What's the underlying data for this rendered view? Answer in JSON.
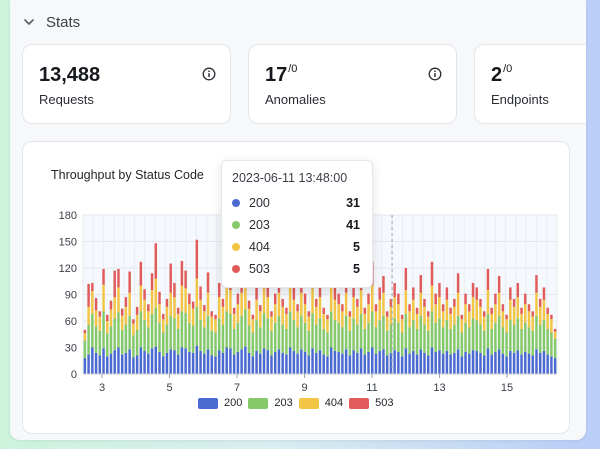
{
  "section": {
    "title": "Stats"
  },
  "cards": [
    {
      "value": "13,488",
      "sup": "",
      "label": "Requests",
      "info": true
    },
    {
      "value": "17",
      "sup": "/0",
      "label": "Anomalies",
      "info": true
    },
    {
      "value": "2",
      "sup": "/0",
      "label": "Endpoints",
      "info": false
    }
  ],
  "chart": {
    "title": "Throughput by Status Code"
  },
  "tooltip": {
    "time": "2023-06-11 13:48:00",
    "rows": [
      {
        "code": "200",
        "value": "31",
        "color": "#4a6ad1"
      },
      {
        "code": "203",
        "value": "41",
        "color": "#86c968"
      },
      {
        "code": "404",
        "value": "5",
        "color": "#f3c544"
      },
      {
        "code": "503",
        "value": "5",
        "color": "#e15b5b"
      }
    ]
  },
  "legend": [
    {
      "label": "200",
      "color": "#4a6ad1"
    },
    {
      "label": "203",
      "color": "#86c968"
    },
    {
      "label": "404",
      "color": "#f3c544"
    },
    {
      "label": "503",
      "color": "#e15b5b"
    }
  ],
  "chart_data": {
    "type": "bar",
    "stacked": true,
    "title": "Throughput by Status Code",
    "ylim": [
      0,
      180
    ],
    "yticks": [
      0,
      30,
      60,
      90,
      120,
      150,
      180
    ],
    "xticks": [
      "3",
      "5",
      "7",
      "9",
      "11",
      "13",
      "15"
    ],
    "grid": true,
    "legend_position": "bottom",
    "series": [
      {
        "name": "200",
        "color": "#4a6ad1",
        "values": [
          18,
          22,
          30,
          24,
          21,
          29,
          20,
          23,
          27,
          30,
          22,
          24,
          28,
          19,
          21,
          30,
          26,
          23,
          29,
          31,
          25,
          20,
          24,
          28,
          27,
          22,
          30,
          29,
          25,
          24,
          32,
          26,
          23,
          28,
          21,
          20,
          27,
          24,
          30,
          29,
          22,
          25,
          28,
          31,
          24,
          20,
          26,
          23,
          29,
          27,
          21,
          25,
          28,
          24,
          22,
          30,
          26,
          23,
          28,
          25,
          21,
          29,
          24,
          27,
          22,
          20,
          30,
          26,
          25,
          23,
          28,
          21,
          27,
          24,
          29,
          22,
          25,
          30,
          23,
          26,
          28,
          21,
          24,
          27,
          25,
          20,
          29,
          23,
          26,
          22,
          28,
          24,
          21,
          30,
          25,
          27,
          23,
          26,
          22,
          24,
          28,
          20,
          25,
          23,
          27,
          26,
          24,
          21,
          29,
          22,
          25,
          28,
          23,
          20,
          26,
          24,
          27,
          22,
          25,
          23,
          21,
          28,
          24,
          26,
          22,
          20,
          18
        ]
      },
      {
        "name": "203",
        "color": "#86c968",
        "values": [
          20,
          34,
          38,
          30,
          28,
          42,
          26,
          31,
          36,
          40,
          28,
          32,
          38,
          25,
          29,
          41,
          35,
          30,
          39,
          44,
          33,
          27,
          32,
          38,
          36,
          29,
          41,
          40,
          33,
          31,
          44,
          35,
          30,
          38,
          28,
          27,
          36,
          32,
          41,
          39,
          29,
          33,
          38,
          42,
          31,
          27,
          35,
          30,
          40,
          36,
          28,
          33,
          38,
          32,
          29,
          41,
          35,
          30,
          38,
          33,
          28,
          40,
          32,
          36,
          29,
          27,
          41,
          35,
          33,
          30,
          38,
          28,
          36,
          32,
          39,
          29,
          33,
          41,
          30,
          35,
          38,
          28,
          32,
          36,
          33,
          27,
          39,
          30,
          35,
          29,
          38,
          32,
          28,
          41,
          33,
          36,
          30,
          35,
          29,
          32,
          38,
          27,
          33,
          30,
          36,
          35,
          32,
          28,
          39,
          29,
          33,
          38,
          30,
          27,
          35,
          32,
          36,
          29,
          33,
          30,
          28,
          38,
          32,
          35,
          29,
          27,
          22
        ]
      },
      {
        "name": "404",
        "color": "#f3c544",
        "values": [
          8,
          20,
          26,
          18,
          16,
          30,
          14,
          19,
          24,
          28,
          16,
          20,
          26,
          13,
          17,
          29,
          23,
          18,
          27,
          33,
          21,
          15,
          20,
          26,
          24,
          17,
          29,
          28,
          21,
          19,
          32,
          23,
          18,
          26,
          16,
          15,
          24,
          20,
          29,
          27,
          17,
          21,
          26,
          30,
          19,
          15,
          23,
          18,
          28,
          24,
          16,
          21,
          26,
          20,
          17,
          29,
          23,
          18,
          26,
          21,
          16,
          28,
          20,
          24,
          17,
          15,
          29,
          23,
          21,
          18,
          26,
          16,
          24,
          20,
          27,
          17,
          21,
          29,
          18,
          23,
          26,
          16,
          20,
          24,
          21,
          15,
          27,
          18,
          23,
          17,
          26,
          20,
          16,
          29,
          21,
          24,
          18,
          23,
          17,
          20,
          26,
          15,
          21,
          18,
          24,
          23,
          20,
          16,
          27,
          17,
          21,
          26,
          18,
          15,
          23,
          20,
          24,
          17,
          21,
          18,
          16,
          26,
          20,
          23,
          17,
          15,
          8
        ]
      },
      {
        "name": "503",
        "color": "#e15b5b",
        "values": [
          4,
          26,
          9,
          14,
          6,
          18,
          7,
          10,
          30,
          21,
          8,
          11,
          24,
          5,
          9,
          27,
          12,
          8,
          19,
          40,
          14,
          6,
          9,
          33,
          16,
          7,
          28,
          20,
          12,
          8,
          44,
          15,
          7,
          23,
          6,
          5,
          16,
          9,
          31,
          22,
          7,
          12,
          25,
          36,
          9,
          5,
          15,
          7,
          29,
          16,
          6,
          12,
          22,
          9,
          7,
          30,
          14,
          8,
          21,
          12,
          6,
          26,
          9,
          16,
          7,
          5,
          28,
          14,
          12,
          8,
          20,
          6,
          16,
          9,
          24,
          7,
          12,
          27,
          8,
          14,
          19,
          6,
          9,
          16,
          12,
          5,
          25,
          8,
          14,
          7,
          20,
          9,
          6,
          27,
          12,
          16,
          8,
          14,
          7,
          9,
          22,
          5,
          12,
          8,
          16,
          14,
          9,
          6,
          24,
          7,
          12,
          19,
          8,
          5,
          14,
          9,
          16,
          7,
          12,
          8,
          6,
          20,
          9,
          14,
          7,
          5,
          3
        ]
      }
    ]
  }
}
